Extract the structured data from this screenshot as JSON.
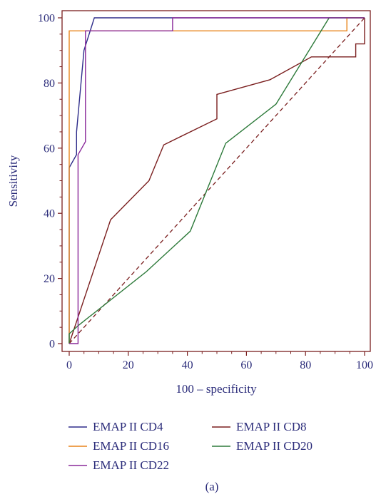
{
  "chart_data": {
    "type": "line",
    "caption": "(a)",
    "xlabel": "100 – specificity",
    "ylabel": "Sensitivity",
    "xlim": [
      0,
      100
    ],
    "ylim": [
      0,
      100
    ],
    "xticks": [
      0,
      20,
      40,
      60,
      80,
      100
    ],
    "yticks": [
      0,
      20,
      40,
      60,
      80,
      100
    ],
    "grid": false,
    "legend_position": "bottom",
    "reference_line": {
      "x": [
        0,
        100
      ],
      "y": [
        0,
        100
      ],
      "style": "dashed",
      "color": "#7a1e1e"
    },
    "series": [
      {
        "name": "EMAP II CD4",
        "color": "#2e2c8a",
        "x": [
          0,
          0,
          2.5,
          2.5,
          5,
          8.5,
          100
        ],
        "y": [
          0,
          54,
          58,
          65,
          90,
          100,
          100
        ]
      },
      {
        "name": "EMAP II CD8",
        "color": "#7a1e1e",
        "x": [
          0,
          14,
          27,
          32,
          50,
          50,
          68,
          82,
          97,
          97,
          100,
          100
        ],
        "y": [
          0,
          38,
          50,
          61,
          69,
          76.5,
          81,
          88,
          88,
          92,
          92,
          100
        ]
      },
      {
        "name": "EMAP II CD16",
        "color": "#e8841a",
        "x": [
          0,
          0,
          94,
          94,
          100
        ],
        "y": [
          0,
          96,
          96,
          100,
          100
        ]
      },
      {
        "name": "EMAP II CD20",
        "color": "#2d7a3a",
        "x": [
          0,
          0,
          3,
          26,
          41,
          53,
          70,
          88,
          100
        ],
        "y": [
          0,
          3,
          5.5,
          22,
          34.5,
          61.5,
          73.5,
          100,
          100
        ]
      },
      {
        "name": "EMAP II CD22",
        "color": "#8a2a9a",
        "x": [
          0,
          3,
          3,
          5.5,
          5.5,
          35,
          35,
          100
        ],
        "y": [
          0,
          0,
          58,
          62,
          96,
          96,
          100,
          100
        ]
      }
    ]
  }
}
